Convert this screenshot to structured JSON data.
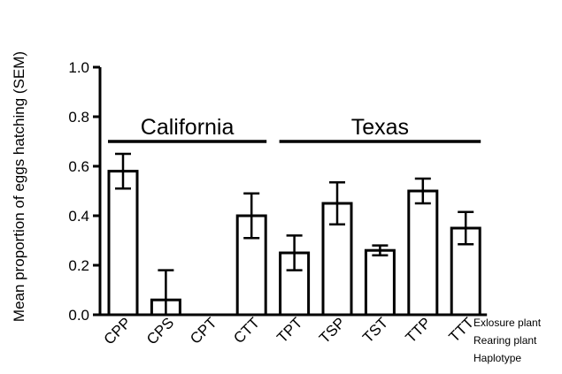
{
  "chart_data": {
    "type": "bar",
    "ylabel": "Mean proportion of eggs hatching (SEM)",
    "ylim": [
      0,
      1.0
    ],
    "yticks": [
      "0.0",
      "0.2",
      "0.4",
      "0.6",
      "0.8",
      "1.0"
    ],
    "categories": [
      "CPP",
      "CPS",
      "CPT",
      "CTT",
      "TPT",
      "TSP",
      "TST",
      "TTP",
      "TTT"
    ],
    "values": [
      0.58,
      0.06,
      0,
      0.4,
      0.25,
      0.45,
      0.26,
      0.5,
      0.35
    ],
    "errors": [
      0.07,
      0.12,
      0,
      0.09,
      0.07,
      0.085,
      0.02,
      0.05,
      0.065
    ],
    "groups": [
      {
        "label": "California",
        "from": 0,
        "to": 3
      },
      {
        "label": "Texas",
        "from": 4,
        "to": 8
      }
    ],
    "legend_lines": [
      "Exlosure plant",
      "Rearing plant",
      "Haplotype"
    ]
  }
}
